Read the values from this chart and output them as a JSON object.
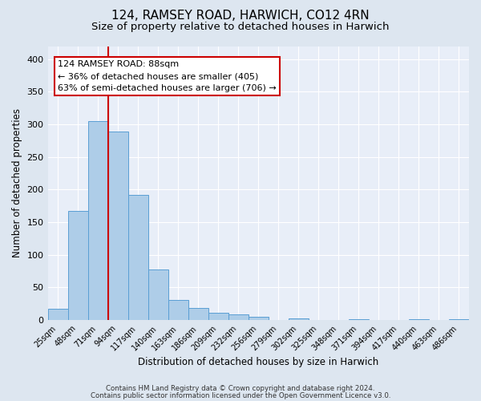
{
  "title": "124, RAMSEY ROAD, HARWICH, CO12 4RN",
  "subtitle": "Size of property relative to detached houses in Harwich",
  "xlabel": "Distribution of detached houses by size in Harwich",
  "ylabel": "Number of detached properties",
  "bar_labels": [
    "25sqm",
    "48sqm",
    "71sqm",
    "94sqm",
    "117sqm",
    "140sqm",
    "163sqm",
    "186sqm",
    "209sqm",
    "232sqm",
    "256sqm",
    "279sqm",
    "302sqm",
    "325sqm",
    "348sqm",
    "371sqm",
    "394sqm",
    "417sqm",
    "440sqm",
    "463sqm",
    "486sqm"
  ],
  "bar_values": [
    17,
    168,
    305,
    289,
    192,
    78,
    31,
    19,
    11,
    9,
    5,
    0,
    3,
    0,
    0,
    2,
    0,
    0,
    1,
    0,
    1
  ],
  "bar_color": "#aecde8",
  "bar_edge_color": "#5a9fd4",
  "bar_width": 1.0,
  "vline_x": 3.0,
  "vline_color": "#cc0000",
  "annotation_line1": "124 RAMSEY ROAD: 88sqm",
  "annotation_line2": "← 36% of detached houses are smaller (405)",
  "annotation_line3": "63% of semi-detached houses are larger (706) →",
  "annotation_box_color": "#ffffff",
  "annotation_box_edge": "#cc0000",
  "ylim": [
    0,
    420
  ],
  "yticks": [
    0,
    50,
    100,
    150,
    200,
    250,
    300,
    350,
    400
  ],
  "bg_color": "#dde6f0",
  "plot_bg_color": "#e8eef8",
  "grid_color": "#ffffff",
  "footer_line1": "Contains HM Land Registry data © Crown copyright and database right 2024.",
  "footer_line2": "Contains public sector information licensed under the Open Government Licence v3.0.",
  "title_fontsize": 11,
  "subtitle_fontsize": 9.5,
  "tick_fontsize": 7,
  "label_fontsize": 8.5
}
